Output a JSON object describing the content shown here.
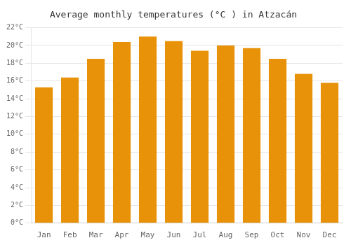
{
  "chart_data": {
    "type": "bar",
    "title": "Average monthly temperatures (°C ) in Atzacán",
    "categories": [
      "Jan",
      "Feb",
      "Mar",
      "Apr",
      "May",
      "Jun",
      "Jul",
      "Aug",
      "Sep",
      "Oct",
      "Nov",
      "Dec"
    ],
    "values": [
      15.3,
      16.4,
      18.5,
      20.4,
      21.0,
      20.5,
      19.4,
      20.0,
      19.7,
      18.5,
      16.8,
      15.8
    ],
    "color": "#E8920A",
    "ylim": [
      0,
      22
    ],
    "yticks": [
      {
        "value": 0,
        "label": "0°C"
      },
      {
        "value": 2,
        "label": "2°C"
      },
      {
        "value": 4,
        "label": "4°C"
      },
      {
        "value": 6,
        "label": "6°C"
      },
      {
        "value": 8,
        "label": "8°C"
      },
      {
        "value": 10,
        "label": "10°C"
      },
      {
        "value": 12,
        "label": "12°C"
      },
      {
        "value": 14,
        "label": "14°C"
      },
      {
        "value": 16,
        "label": "16°C"
      },
      {
        "value": 18,
        "label": "18°C"
      },
      {
        "value": 20,
        "label": "20°C"
      },
      {
        "value": 22,
        "label": "22°C"
      }
    ],
    "grid": true
  }
}
